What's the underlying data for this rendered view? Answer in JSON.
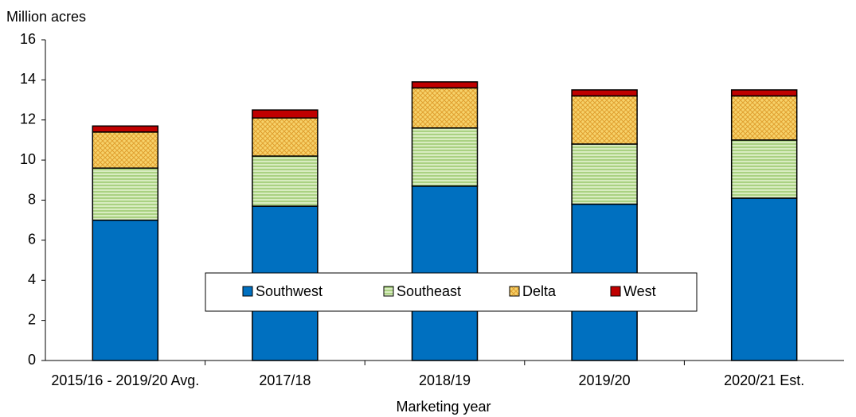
{
  "chart_data": {
    "type": "stacked_bar",
    "y_label": "Million acres",
    "x_label": "Marketing  year",
    "categories": [
      "2015/16 - 2019/20 Avg.",
      "2017/18",
      "2018/19",
      "2019/20",
      "2020/21 Est."
    ],
    "series": [
      {
        "name": "Southwest",
        "color": "#0070c0",
        "pattern": "solid",
        "values": [
          7.0,
          7.7,
          8.7,
          7.8,
          8.1
        ]
      },
      {
        "name": "Southeast",
        "color": "#d8ecc0",
        "pattern": "horizontal",
        "values": [
          2.6,
          2.5,
          2.9,
          3.0,
          2.9
        ]
      },
      {
        "name": "Delta",
        "color": "#f7d26a",
        "pattern": "crosshatch",
        "values": [
          1.8,
          1.9,
          2.0,
          2.4,
          2.2
        ]
      },
      {
        "name": "West",
        "color": "#c00000",
        "pattern": "solid",
        "values": [
          0.3,
          0.4,
          0.3,
          0.3,
          0.3
        ]
      }
    ],
    "ylim": [
      0,
      16
    ],
    "yticks": [
      0,
      2,
      4,
      6,
      8,
      10,
      12,
      14,
      16
    ],
    "grid": false,
    "legend": "center"
  }
}
